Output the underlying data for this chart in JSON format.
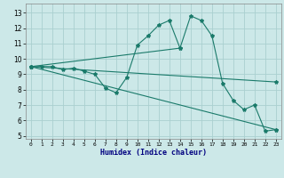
{
  "xlabel": "Humidex (Indice chaleur)",
  "ylabel": "",
  "background_color": "#cce8e8",
  "grid_color": "#aad0d0",
  "line_color": "#1a7a6a",
  "xlim": [
    -0.5,
    23.5
  ],
  "ylim": [
    4.8,
    13.6
  ],
  "xticks": [
    0,
    1,
    2,
    3,
    4,
    5,
    6,
    7,
    8,
    9,
    10,
    11,
    12,
    13,
    14,
    15,
    16,
    17,
    18,
    19,
    20,
    21,
    22,
    23
  ],
  "yticks": [
    5,
    6,
    7,
    8,
    9,
    10,
    11,
    12,
    13
  ],
  "series": [
    {
      "x": [
        0,
        1,
        2,
        3,
        4,
        5,
        6,
        7,
        8,
        9,
        10,
        11,
        12,
        13,
        14,
        15,
        16,
        17,
        18,
        19,
        20,
        21,
        22,
        23
      ],
      "y": [
        9.5,
        9.5,
        9.5,
        9.3,
        9.4,
        9.2,
        9.0,
        8.1,
        7.8,
        8.8,
        10.9,
        11.5,
        12.2,
        12.5,
        10.7,
        12.8,
        12.5,
        11.5,
        8.4,
        7.3,
        6.7,
        7.0,
        5.3,
        5.4
      ]
    },
    {
      "x": [
        0,
        23
      ],
      "y": [
        9.5,
        8.5
      ]
    },
    {
      "x": [
        0,
        23
      ],
      "y": [
        9.5,
        5.4
      ]
    },
    {
      "x": [
        0,
        14
      ],
      "y": [
        9.5,
        10.7
      ]
    }
  ]
}
